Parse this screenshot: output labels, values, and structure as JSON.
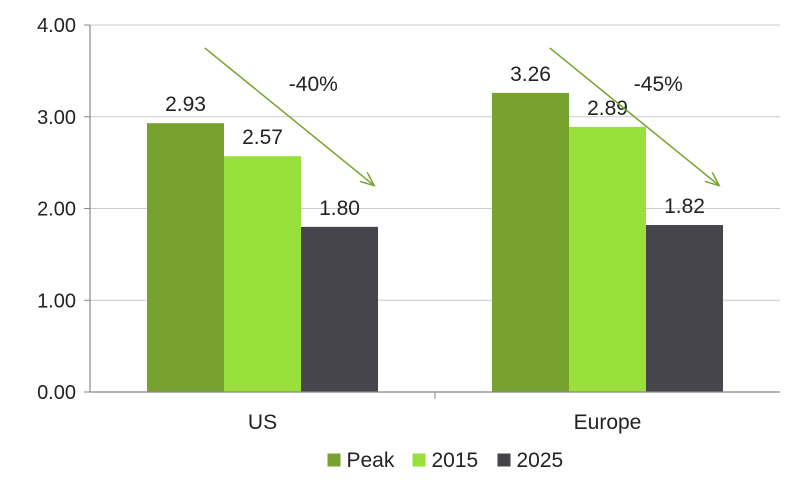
{
  "chart_data": {
    "type": "bar",
    "categories": [
      "US",
      "Europe"
    ],
    "series": [
      {
        "name": "Peak",
        "values": [
          2.93,
          3.26
        ],
        "color": "#77a22f"
      },
      {
        "name": "2015",
        "values": [
          2.57,
          2.89
        ],
        "color": "#99e03a"
      },
      {
        "name": "2025",
        "values": [
          1.8,
          1.82
        ],
        "color": "#46454b"
      }
    ],
    "ylim": [
      0,
      4
    ],
    "yticks": [
      0,
      1,
      2,
      3,
      4
    ],
    "ytick_labels": [
      "0.00",
      "1.00",
      "2.00",
      "3.00",
      "4.00"
    ],
    "grid": true,
    "legend_position": "bottom",
    "annotations": [
      {
        "category": "US",
        "text": "-40%",
        "color": "#77a22f"
      },
      {
        "category": "Europe",
        "text": "-45%",
        "color": "#77a22f"
      }
    ],
    "title": "",
    "xlabel": "",
    "ylabel": ""
  }
}
